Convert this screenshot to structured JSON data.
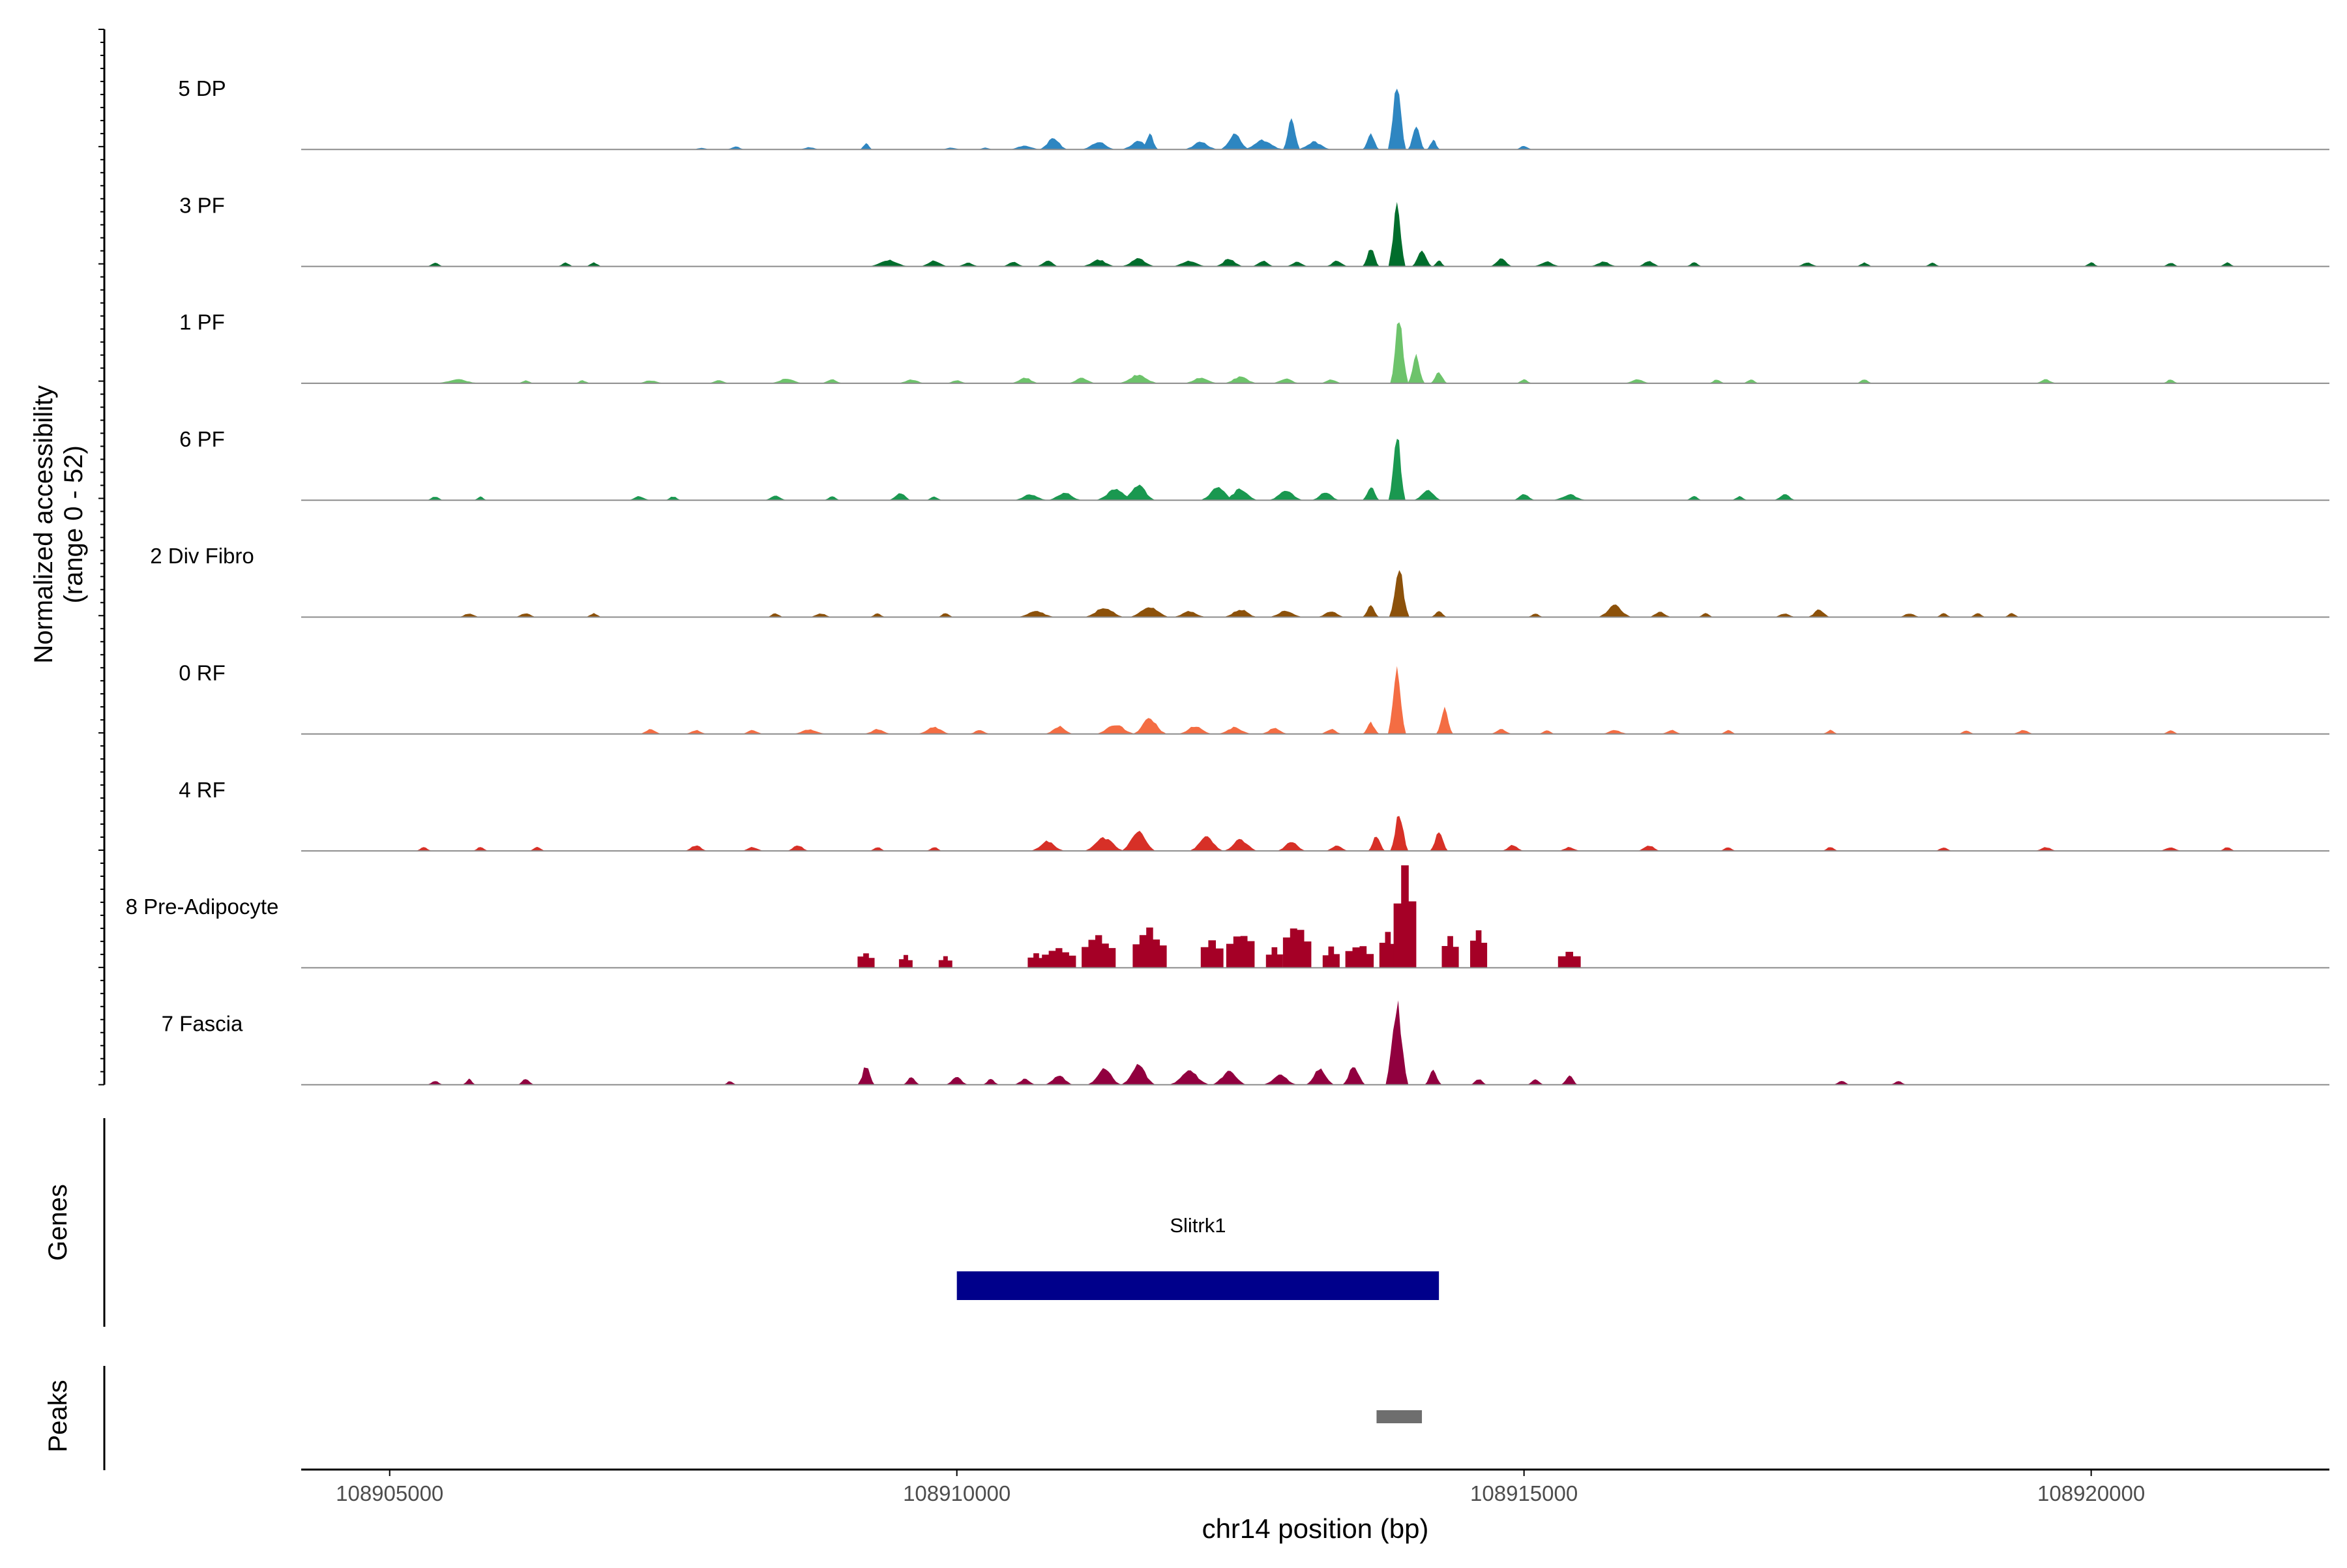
{
  "chart_data": {
    "type": "area",
    "title": "",
    "ylabel_line1": "Normalized accessibility",
    "ylabel_line2": "(range 0 - 52)",
    "xlabel": "chr14 position (bp)",
    "xlim": [
      108904220,
      108922100
    ],
    "ylim": [
      0,
      52
    ],
    "x_ticks": [
      108905000,
      108910000,
      108915000,
      108920000
    ],
    "x_tick_labels": [
      "108905000",
      "108910000",
      "108915000",
      "108920000"
    ],
    "tracks": [
      {
        "name": "5 DP",
        "color": "#2E86C1",
        "peaks": [
          [
            108907750,
            150,
            1
          ],
          [
            108908050,
            180,
            1.5
          ],
          [
            108908700,
            200,
            1.2
          ],
          [
            108909200,
            120,
            3
          ],
          [
            108909950,
            200,
            1
          ],
          [
            108910250,
            150,
            1
          ],
          [
            108910600,
            300,
            2
          ],
          [
            108910850,
            250,
            6
          ],
          [
            108911250,
            300,
            4
          ],
          [
            108911600,
            300,
            4.5
          ],
          [
            108911700,
            150,
            8
          ],
          [
            108912150,
            300,
            4
          ],
          [
            108912450,
            250,
            8
          ],
          [
            108912700,
            350,
            5
          ],
          [
            108912950,
            150,
            18
          ],
          [
            108913150,
            300,
            4
          ],
          [
            108913650,
            150,
            8
          ],
          [
            108913880,
            160,
            35
          ],
          [
            108914050,
            150,
            12
          ],
          [
            108914200,
            120,
            5
          ],
          [
            108915000,
            150,
            2
          ]
        ]
      },
      {
        "name": "3 PF",
        "color": "#006D2C",
        "peaks": [
          [
            108905400,
            150,
            2
          ],
          [
            108906550,
            150,
            2
          ],
          [
            108906800,
            150,
            2
          ],
          [
            108909400,
            350,
            3.5
          ],
          [
            108909800,
            250,
            3
          ],
          [
            108910100,
            200,
            2
          ],
          [
            108910500,
            200,
            2.5
          ],
          [
            108910800,
            200,
            3
          ],
          [
            108911250,
            300,
            3.5
          ],
          [
            108911600,
            300,
            4
          ],
          [
            108912050,
            300,
            3
          ],
          [
            108912400,
            250,
            4
          ],
          [
            108912700,
            200,
            3
          ],
          [
            108913000,
            200,
            2.5
          ],
          [
            108913350,
            200,
            3
          ],
          [
            108913650,
            150,
            10
          ],
          [
            108913880,
            150,
            35
          ],
          [
            108914100,
            180,
            8
          ],
          [
            108914250,
            120,
            3
          ],
          [
            108914800,
            200,
            4
          ],
          [
            108915200,
            250,
            2.5
          ],
          [
            108915700,
            250,
            2.5
          ],
          [
            108916100,
            200,
            3
          ],
          [
            108916500,
            150,
            2
          ],
          [
            108917500,
            200,
            2
          ],
          [
            108918000,
            150,
            2
          ],
          [
            108918600,
            150,
            2
          ],
          [
            108920000,
            150,
            2
          ],
          [
            108920700,
            150,
            2
          ],
          [
            108921200,
            150,
            2
          ]
        ]
      },
      {
        "name": "1 PF",
        "color": "#6DC36B",
        "peaks": [
          [
            108905600,
            400,
            2
          ],
          [
            108906200,
            150,
            1.5
          ],
          [
            108906700,
            150,
            1.5
          ],
          [
            108907300,
            250,
            1.5
          ],
          [
            108907900,
            200,
            1.5
          ],
          [
            108908500,
            300,
            2.5
          ],
          [
            108908900,
            200,
            2
          ],
          [
            108909600,
            250,
            2
          ],
          [
            108910000,
            200,
            1.5
          ],
          [
            108910600,
            250,
            3
          ],
          [
            108911100,
            250,
            3
          ],
          [
            108911600,
            350,
            4.5
          ],
          [
            108912150,
            300,
            3
          ],
          [
            108912500,
            300,
            3.5
          ],
          [
            108912900,
            250,
            2.5
          ],
          [
            108913300,
            200,
            2
          ],
          [
            108913900,
            160,
            35
          ],
          [
            108914050,
            150,
            14
          ],
          [
            108914250,
            150,
            6
          ],
          [
            108915000,
            150,
            2
          ],
          [
            108916000,
            250,
            2
          ],
          [
            108916700,
            150,
            2
          ],
          [
            108917000,
            150,
            2
          ],
          [
            108918000,
            150,
            2
          ],
          [
            108919600,
            200,
            2
          ],
          [
            108920700,
            150,
            2
          ]
        ]
      },
      {
        "name": "6 PF",
        "color": "#1A9850",
        "peaks": [
          [
            108905400,
            150,
            2
          ],
          [
            108905800,
            120,
            2
          ],
          [
            108907200,
            200,
            2
          ],
          [
            108907500,
            150,
            2
          ],
          [
            108908400,
            200,
            2.5
          ],
          [
            108908900,
            150,
            2
          ],
          [
            108909500,
            200,
            4
          ],
          [
            108909800,
            150,
            2
          ],
          [
            108910650,
            300,
            3
          ],
          [
            108910950,
            300,
            4
          ],
          [
            108911400,
            350,
            6
          ],
          [
            108911600,
            300,
            8
          ],
          [
            108912300,
            300,
            7
          ],
          [
            108912500,
            300,
            6
          ],
          [
            108912900,
            300,
            5
          ],
          [
            108913250,
            250,
            4
          ],
          [
            108913650,
            150,
            7
          ],
          [
            108913880,
            150,
            35
          ],
          [
            108914150,
            250,
            5
          ],
          [
            108915000,
            200,
            3
          ],
          [
            108915400,
            300,
            3
          ],
          [
            108916500,
            150,
            2
          ],
          [
            108916900,
            150,
            2
          ],
          [
            108917300,
            200,
            3
          ]
        ]
      },
      {
        "name": "2 Div Fibro",
        "color": "#8C510A",
        "peaks": [
          [
            108905700,
            200,
            2
          ],
          [
            108906200,
            200,
            2
          ],
          [
            108906800,
            150,
            2
          ],
          [
            108908400,
            150,
            2
          ],
          [
            108908800,
            200,
            2
          ],
          [
            108909300,
            150,
            2
          ],
          [
            108909900,
            150,
            2
          ],
          [
            108910700,
            350,
            3
          ],
          [
            108911300,
            350,
            5
          ],
          [
            108911700,
            350,
            5.5
          ],
          [
            108912050,
            300,
            3
          ],
          [
            108912500,
            300,
            4
          ],
          [
            108912900,
            300,
            3.5
          ],
          [
            108913300,
            250,
            3
          ],
          [
            108913650,
            150,
            6
          ],
          [
            108913900,
            180,
            25
          ],
          [
            108914250,
            150,
            3
          ],
          [
            108915100,
            150,
            2
          ],
          [
            108915800,
            300,
            6
          ],
          [
            108916200,
            200,
            3
          ],
          [
            108916600,
            150,
            2
          ],
          [
            108917300,
            200,
            2
          ],
          [
            108917600,
            200,
            4
          ],
          [
            108918400,
            200,
            2
          ],
          [
            108918700,
            150,
            2
          ],
          [
            108919000,
            150,
            2
          ],
          [
            108919300,
            150,
            2
          ]
        ]
      },
      {
        "name": "0 RF",
        "color": "#F46D43",
        "peaks": [
          [
            108907300,
            200,
            2.5
          ],
          [
            108907700,
            200,
            2
          ],
          [
            108908200,
            200,
            2
          ],
          [
            108908700,
            300,
            2.5
          ],
          [
            108909300,
            250,
            2.5
          ],
          [
            108909800,
            300,
            3.5
          ],
          [
            108910200,
            200,
            2
          ],
          [
            108910900,
            250,
            4
          ],
          [
            108911400,
            350,
            5
          ],
          [
            108911700,
            300,
            8
          ],
          [
            108912100,
            300,
            4
          ],
          [
            108912450,
            300,
            3.5
          ],
          [
            108912800,
            250,
            3
          ],
          [
            108913300,
            200,
            2.5
          ],
          [
            108913650,
            150,
            6
          ],
          [
            108913880,
            160,
            34
          ],
          [
            108914300,
            150,
            14
          ],
          [
            108914800,
            200,
            2.5
          ],
          [
            108915200,
            150,
            2
          ],
          [
            108915800,
            250,
            2
          ],
          [
            108916300,
            200,
            2
          ],
          [
            108916800,
            150,
            2
          ],
          [
            108917700,
            150,
            2
          ],
          [
            108918900,
            150,
            2
          ],
          [
            108919400,
            200,
            2
          ],
          [
            108920700,
            150,
            2
          ]
        ]
      },
      {
        "name": "4 RF",
        "color": "#D73027",
        "peaks": [
          [
            108905300,
            150,
            2
          ],
          [
            108905800,
            150,
            2
          ],
          [
            108906300,
            150,
            2
          ],
          [
            108907700,
            200,
            3
          ],
          [
            108908200,
            200,
            2
          ],
          [
            108908600,
            200,
            3
          ],
          [
            108909300,
            150,
            2
          ],
          [
            108909800,
            150,
            2
          ],
          [
            108910800,
            300,
            5
          ],
          [
            108911300,
            350,
            7
          ],
          [
            108911600,
            300,
            10
          ],
          [
            108912200,
            300,
            7
          ],
          [
            108912500,
            300,
            6
          ],
          [
            108912950,
            250,
            5
          ],
          [
            108913350,
            200,
            3
          ],
          [
            108913700,
            150,
            8
          ],
          [
            108913900,
            160,
            20
          ],
          [
            108914250,
            160,
            10
          ],
          [
            108914900,
            200,
            3
          ],
          [
            108915400,
            200,
            2
          ],
          [
            108916100,
            200,
            3
          ],
          [
            108916800,
            150,
            2
          ],
          [
            108917700,
            150,
            2
          ],
          [
            108918700,
            150,
            2
          ],
          [
            108919600,
            200,
            2
          ],
          [
            108920700,
            200,
            2
          ],
          [
            108921200,
            150,
            2
          ]
        ]
      },
      {
        "name": "8 Pre-Adipocyte",
        "color": "#A50026",
        "blocky": true,
        "peaks": [
          [
            108909200,
            150,
            8
          ],
          [
            108909550,
            120,
            6
          ],
          [
            108909900,
            120,
            6
          ],
          [
            108910700,
            150,
            8
          ],
          [
            108910900,
            300,
            10
          ],
          [
            108911250,
            300,
            16
          ],
          [
            108911700,
            300,
            20
          ],
          [
            108912250,
            200,
            16
          ],
          [
            108912500,
            250,
            20
          ],
          [
            108912800,
            150,
            10
          ],
          [
            108913000,
            250,
            22
          ],
          [
            108913300,
            150,
            10
          ],
          [
            108913550,
            250,
            12
          ],
          [
            108913800,
            150,
            18
          ],
          [
            108913950,
            200,
            52
          ],
          [
            108914350,
            150,
            16
          ],
          [
            108914600,
            150,
            20
          ],
          [
            108915400,
            200,
            8
          ]
        ]
      },
      {
        "name": "7 Fascia",
        "color": "#91003F",
        "peaks": [
          [
            108905400,
            150,
            2
          ],
          [
            108905700,
            120,
            3
          ],
          [
            108906200,
            150,
            3
          ],
          [
            108908000,
            120,
            2
          ],
          [
            108909200,
            150,
            10
          ],
          [
            108909600,
            150,
            4
          ],
          [
            108910000,
            200,
            4
          ],
          [
            108910300,
            150,
            3
          ],
          [
            108910600,
            200,
            3
          ],
          [
            108910900,
            250,
            5
          ],
          [
            108911300,
            300,
            8
          ],
          [
            108911600,
            300,
            10
          ],
          [
            108912050,
            350,
            7
          ],
          [
            108912400,
            300,
            7
          ],
          [
            108912850,
            300,
            5
          ],
          [
            108913200,
            250,
            8
          ],
          [
            108913500,
            200,
            10
          ],
          [
            108913880,
            200,
            42
          ],
          [
            108914200,
            150,
            8
          ],
          [
            108914600,
            150,
            3
          ],
          [
            108915100,
            150,
            3
          ],
          [
            108915400,
            150,
            5
          ],
          [
            108917800,
            150,
            2
          ],
          [
            108918300,
            150,
            2
          ]
        ]
      }
    ],
    "genes_label": "Genes",
    "genes": [
      {
        "name": "Slitrk1",
        "start": 108910000,
        "end": 108914250,
        "color": "#00008B"
      }
    ],
    "peaks_label": "Peaks",
    "peak_regions": [
      {
        "start": 108913700,
        "end": 108914100,
        "color": "#6E6E6E"
      }
    ]
  }
}
